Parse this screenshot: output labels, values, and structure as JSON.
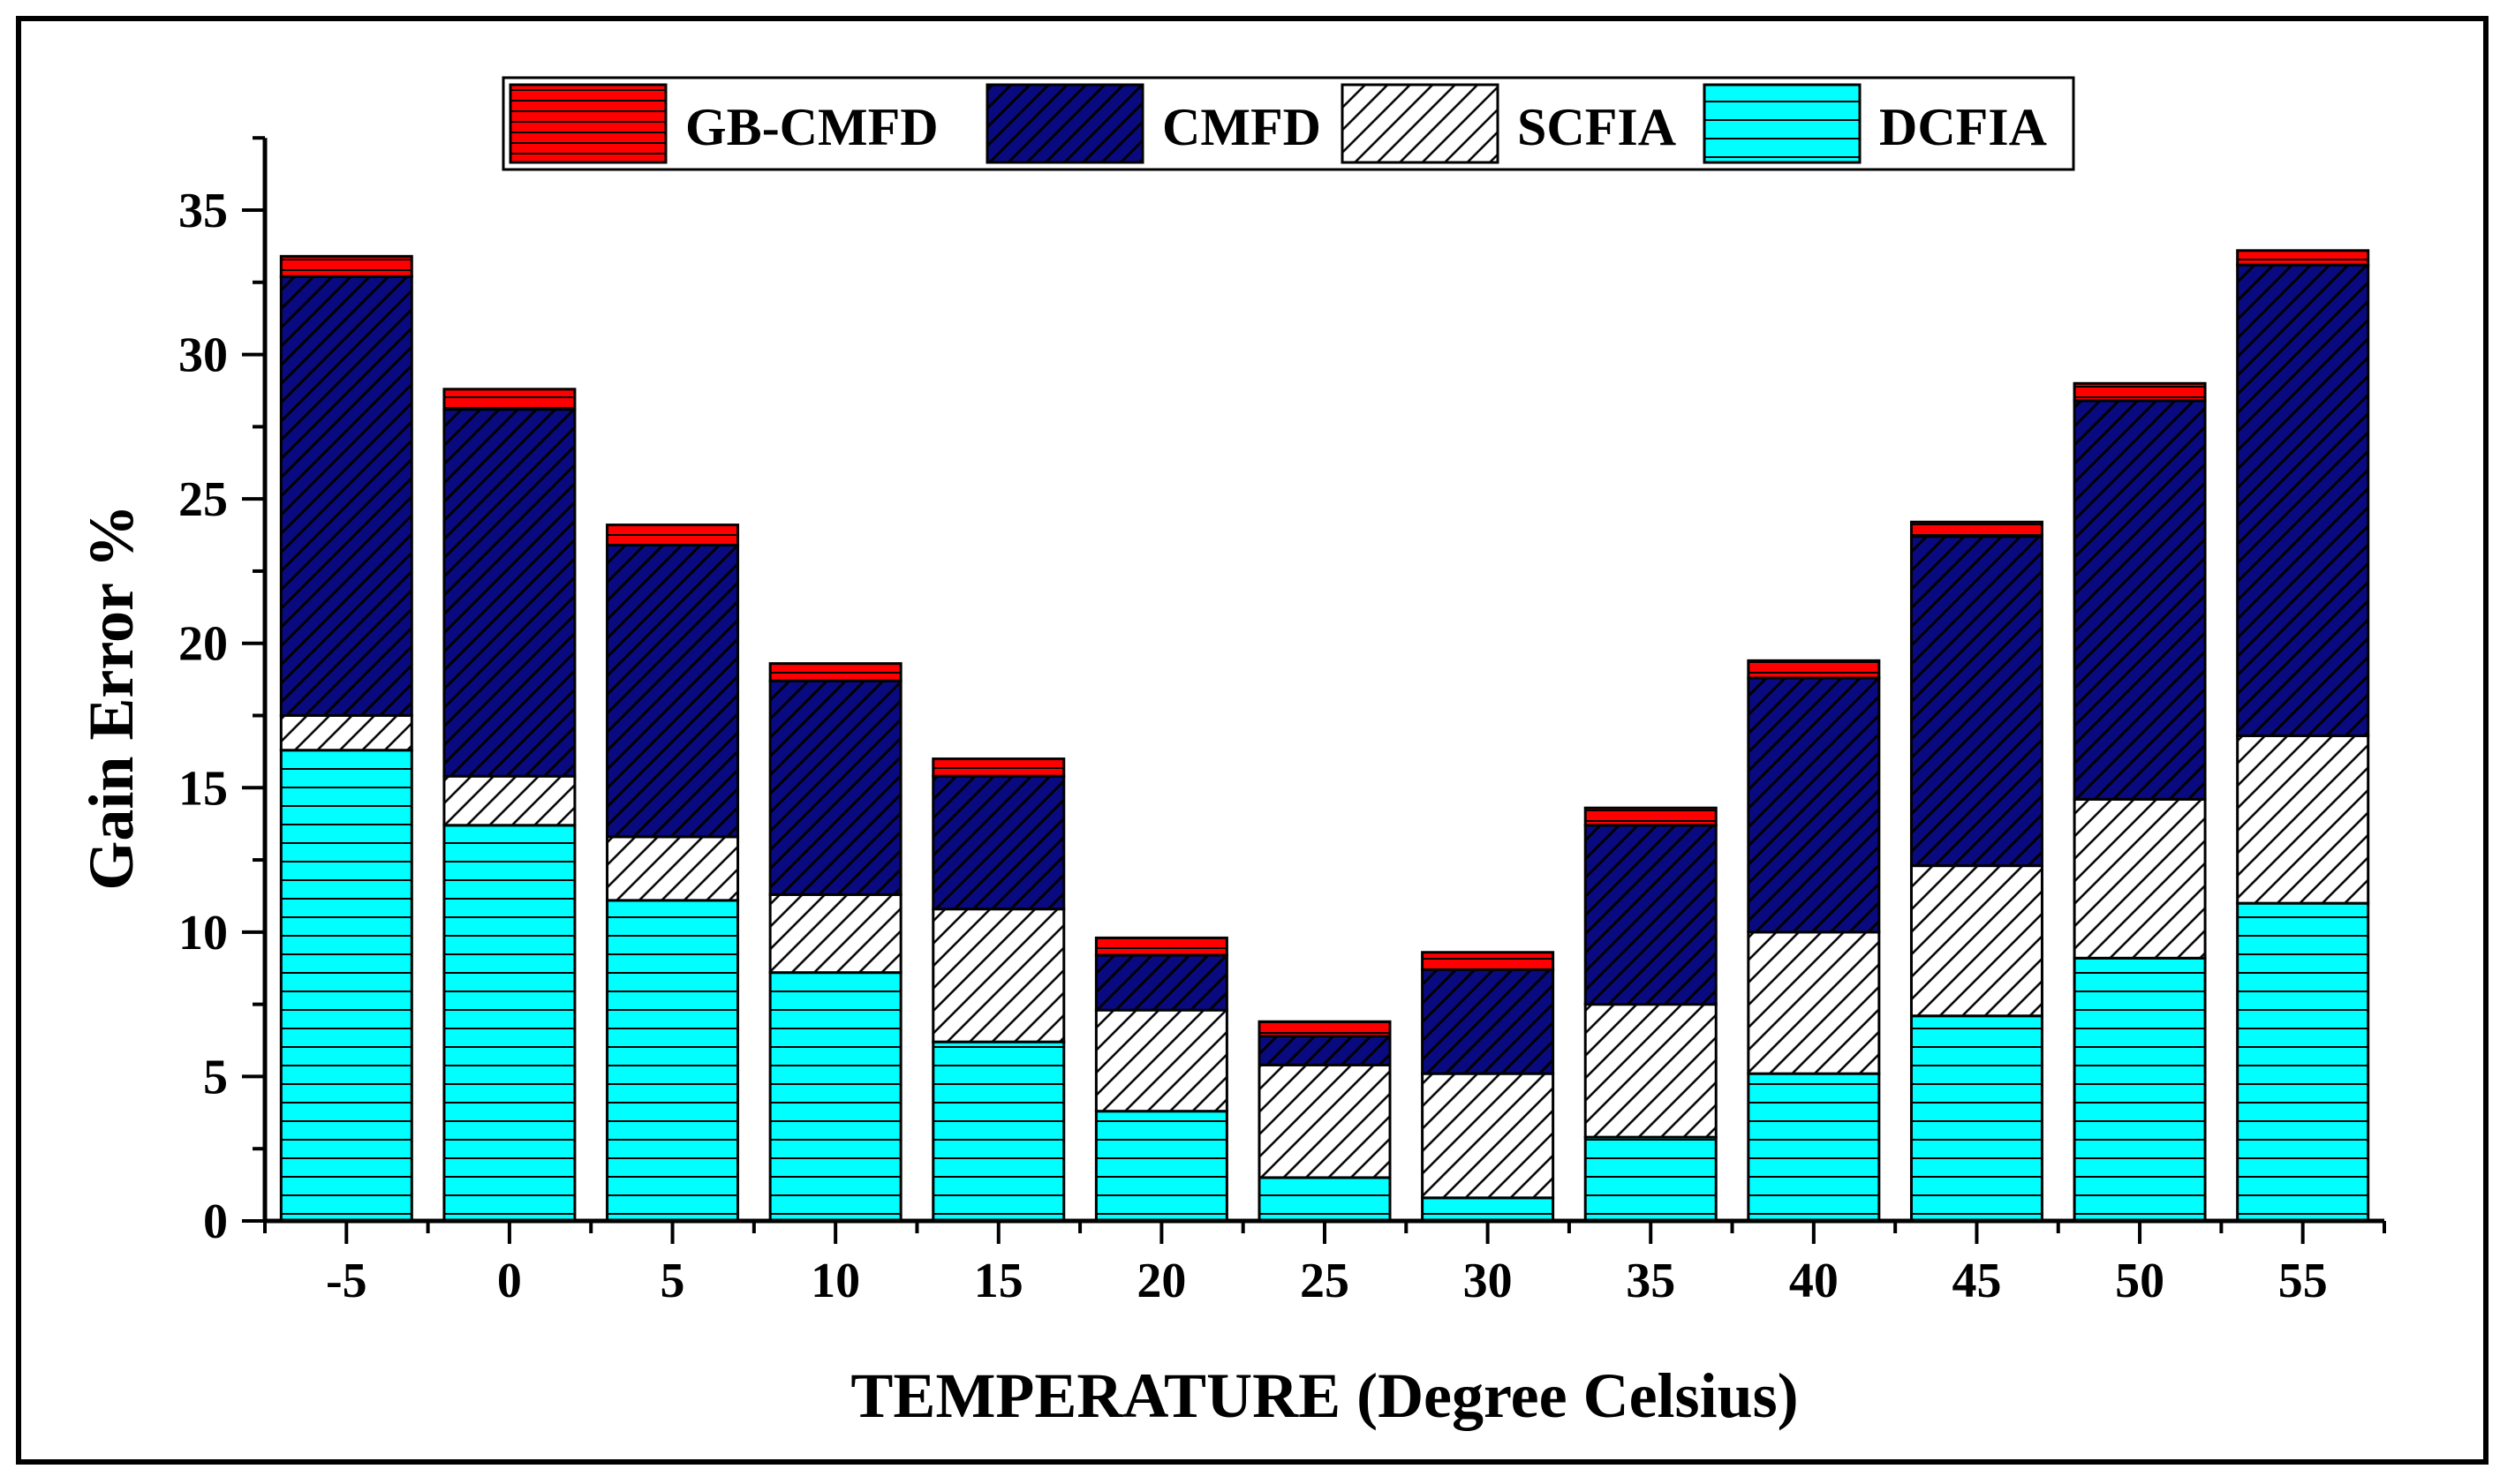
{
  "chart_data": {
    "type": "bar",
    "stacked": true,
    "xlabel": "TEMPERATURE (Degree Celsius)",
    "ylabel": "Gain Error %",
    "ylim": [
      0,
      37.5
    ],
    "yticks": [
      0,
      5,
      10,
      15,
      20,
      25,
      30,
      35
    ],
    "categories": [
      "-5",
      "0",
      "5",
      "10",
      "15",
      "20",
      "25",
      "30",
      "35",
      "40",
      "45",
      "50",
      "55"
    ],
    "series": [
      {
        "name": "DCFIA",
        "color": "#00FFFF",
        "pattern": "horizontal",
        "values": [
          16.3,
          13.7,
          11.1,
          8.6,
          6.2,
          3.8,
          1.5,
          0.8,
          2.9,
          5.1,
          7.1,
          9.1,
          11.0
        ]
      },
      {
        "name": "SCFIA",
        "color": "#FFFFFF",
        "pattern": "diagonal",
        "values": [
          1.2,
          1.7,
          2.2,
          2.7,
          4.6,
          3.5,
          3.9,
          4.3,
          4.6,
          4.9,
          5.2,
          5.5,
          5.8
        ]
      },
      {
        "name": "CMFD",
        "color": "#0A0A80",
        "pattern": "diagonal",
        "values": [
          15.2,
          12.7,
          10.1,
          7.4,
          4.6,
          1.9,
          1.0,
          3.6,
          6.2,
          8.8,
          11.4,
          13.8,
          16.3
        ]
      },
      {
        "name": "GB-CMFD",
        "color": "#FF0000",
        "pattern": "horizontal",
        "values": [
          0.7,
          0.7,
          0.7,
          0.6,
          0.6,
          0.6,
          0.5,
          0.6,
          0.6,
          0.6,
          0.5,
          0.6,
          0.5
        ]
      }
    ],
    "legend_order": [
      "GB-CMFD",
      "CMFD",
      "SCFIA",
      "DCFIA"
    ],
    "legend_position": "top-center",
    "grid": false
  }
}
